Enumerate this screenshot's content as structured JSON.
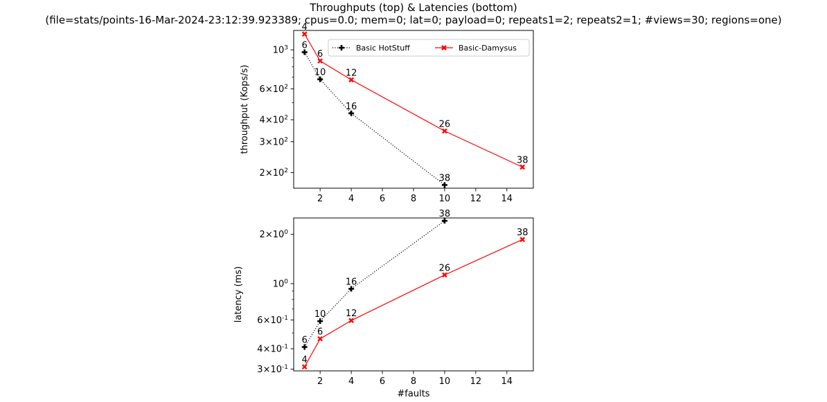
{
  "figure": {
    "title": "Throughputs (top) & Latencies (bottom)",
    "subtitle": "(file=stats/points-16-Mar-2024-23:12:39.923389; cpus=0.0; mem=0; lat=0; payload=0; repeats1=2; repeats2=1; #views=30; regions=one)"
  },
  "legend": {
    "placement": "top-right",
    "entries": [
      {
        "label": "Basic HotStuff",
        "color": "#000000",
        "style": "dotted",
        "marker": "plus"
      },
      {
        "label": "Basic-Damysus",
        "color": "#ff0000",
        "style": "solid",
        "marker": "x"
      }
    ]
  },
  "chart_data": [
    {
      "type": "line",
      "title": "",
      "xlabel": "",
      "ylabel": "throughput (Kops/s)",
      "yscale": "log",
      "xlim": [
        0.3,
        15.7
      ],
      "ylim": [
        163,
        1290
      ],
      "xticks": [
        2,
        4,
        6,
        8,
        10,
        12,
        14
      ],
      "yticks": [
        {
          "value": 1000,
          "label": "10^3"
        },
        {
          "value": 600,
          "label": "6×10^2"
        },
        {
          "value": 400,
          "label": "4×10^2"
        },
        {
          "value": 300,
          "label": "3×10^2"
        },
        {
          "value": 200,
          "label": "2×10^2"
        }
      ],
      "series": [
        {
          "name": "Basic HotStuff",
          "color": "#000000",
          "style": "dotted",
          "x": [
            1,
            2,
            4,
            10
          ],
          "y": [
            970,
            680,
            435,
            170
          ],
          "labels": [
            "6",
            "10",
            "16",
            "38"
          ]
        },
        {
          "name": "Basic-Damysus",
          "color": "#ff0000",
          "style": "solid",
          "x": [
            1,
            2,
            4,
            10,
            15
          ],
          "y": [
            1230,
            865,
            675,
            345,
            215
          ],
          "labels": [
            "4",
            "6",
            "12",
            "26",
            "38"
          ]
        }
      ]
    },
    {
      "type": "line",
      "title": "",
      "xlabel": "#faults",
      "ylabel": "latency (ms)",
      "yscale": "log",
      "xlim": [
        0.3,
        15.7
      ],
      "ylim": [
        0.293,
        2.52
      ],
      "xticks": [
        2,
        4,
        6,
        8,
        10,
        12,
        14
      ],
      "yticks": [
        {
          "value": 2.0,
          "label": "2×10^0"
        },
        {
          "value": 1.0,
          "label": "10^0"
        },
        {
          "value": 0.6,
          "label": "6×10^-1"
        },
        {
          "value": 0.4,
          "label": "4×10^-1"
        },
        {
          "value": 0.3,
          "label": "3×10^-1"
        }
      ],
      "series": [
        {
          "name": "Basic HotStuff",
          "color": "#000000",
          "style": "dotted",
          "x": [
            1,
            2,
            4,
            10
          ],
          "y": [
            0.41,
            0.59,
            0.93,
            2.42
          ],
          "labels": [
            "6",
            "10",
            "16",
            "38"
          ]
        },
        {
          "name": "Basic-Damysus",
          "color": "#ff0000",
          "style": "solid",
          "x": [
            1,
            2,
            4,
            10,
            15
          ],
          "y": [
            0.31,
            0.46,
            0.595,
            1.13,
            1.86
          ],
          "labels": [
            "4",
            "6",
            "12",
            "26",
            "38"
          ]
        }
      ]
    }
  ]
}
